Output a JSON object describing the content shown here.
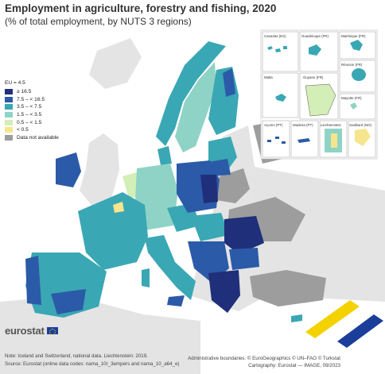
{
  "header": {
    "title": "Employment in agriculture, forestry and fishing, 2020",
    "subtitle": "(% of total employment, by NUTS 3 regions)"
  },
  "legend": {
    "eu_value": "EU = 4.5",
    "items": [
      {
        "label": "≥ 16.5",
        "color": "#1f2f7a"
      },
      {
        "label": "7.5 – < 16.5",
        "color": "#2b5aa8"
      },
      {
        "label": "3.5 – < 7.5",
        "color": "#3aa7b4"
      },
      {
        "label": "1.5 – < 3.5",
        "color": "#8fd3c6"
      },
      {
        "label": "0.5 – < 1.5",
        "color": "#d3eeb6"
      },
      {
        "label": "< 0.5",
        "color": "#f7e58d"
      },
      {
        "label": "Data not available",
        "color": "#9d9d9d"
      }
    ]
  },
  "insets": [
    {
      "name": "Canarias (ES)"
    },
    {
      "name": "Guadeloupe (FR)"
    },
    {
      "name": "Martinique (FR)"
    },
    {
      "name": "Guyane (FR)"
    },
    {
      "name": "Réunion (FR)"
    },
    {
      "name": "Malta"
    },
    {
      "name": "Mayotte (FR)"
    },
    {
      "name": "Açores (PT)"
    },
    {
      "name": "Madeira (PT)"
    },
    {
      "name": "Liechtenstein"
    },
    {
      "name": "Svalbard (NO)"
    }
  ],
  "colors": {
    "sea": "#ffffff",
    "non_eu_land": "#e4e4e4",
    "no_data": "#9d9d9d",
    "border": "#222222"
  },
  "footer": {
    "brand": "eurostat",
    "note": "Note: Iceland and Switzerland, national data. Liechtenstein: 2019.",
    "source": "Source: Eurostat (online data codes: nama_10r_3empers and nama_10_a64_e)",
    "credit_boundaries": "Administrative boundaries: © EuroGeographics © UN–FAO © Turkstat",
    "credit_cartography": "Cartography: Eurostat — IMAGE, 09/2023"
  }
}
